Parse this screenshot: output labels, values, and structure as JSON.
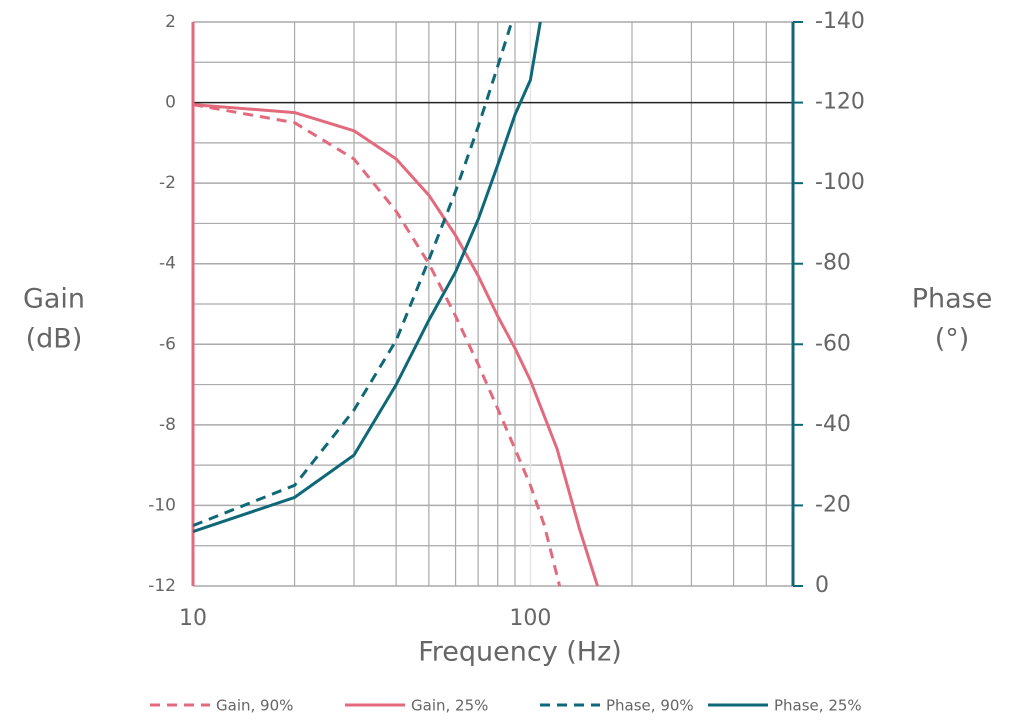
{
  "chart_data": {
    "type": "line",
    "xlabel": "Frequency (Hz)",
    "ylabel": [
      "Gain",
      "(dB)"
    ],
    "y2label": [
      "Phase",
      "(°)"
    ],
    "xscale": "log",
    "xlim": [
      10,
      600
    ],
    "xticks": [
      10,
      100
    ],
    "ylim": [
      -12,
      2
    ],
    "yticks": [
      -12,
      -10,
      -8,
      -6,
      -4,
      -2,
      0,
      2
    ],
    "y2lim": [
      0,
      -140
    ],
    "y2ticks": [
      0,
      -20,
      -40,
      -60,
      -80,
      -100,
      -120,
      -140
    ],
    "grid": true,
    "legend": "bottom",
    "series": [
      {
        "name": "Gain, 90%",
        "color": "#e36a7c",
        "dashed": true,
        "x": [
          10,
          20,
          30,
          40,
          50,
          60,
          70,
          80,
          90,
          100,
          110,
          122
        ],
        "values": [
          -0.05,
          -0.5,
          -1.4,
          -2.7,
          -4,
          -5.3,
          -6.5,
          -7.6,
          -8.6,
          -9.5,
          -10.5,
          -12
        ]
      },
      {
        "name": "Gain, 25%",
        "color": "#e36a7c",
        "dashed": false,
        "x": [
          10,
          20,
          30,
          40,
          50,
          60,
          70,
          80,
          90,
          100,
          120,
          140,
          158
        ],
        "values": [
          -0.05,
          -0.25,
          -0.7,
          -1.4,
          -2.3,
          -3.3,
          -4.3,
          -5.3,
          -6.1,
          -6.9,
          -8.6,
          -10.6,
          -12
        ]
      },
      {
        "name": "Phase, 90%",
        "color": "#0f6878",
        "dashed": true,
        "axis": "y2",
        "x": [
          10,
          20,
          30,
          40,
          50,
          60,
          70,
          80,
          88
        ],
        "values": [
          -15,
          -25,
          -43.7,
          -61,
          -81,
          -98,
          -114,
          -129,
          -140
        ]
      },
      {
        "name": "Phase, 25%",
        "color": "#0f6878",
        "dashed": false,
        "axis": "y2",
        "x": [
          10,
          20,
          30,
          40,
          50,
          60,
          70,
          80,
          90,
          100,
          107
        ],
        "values": [
          -13.5,
          -22,
          -32.5,
          -50,
          -66,
          -78,
          -91,
          -104.5,
          -117,
          -125.6,
          -140
        ]
      }
    ]
  }
}
